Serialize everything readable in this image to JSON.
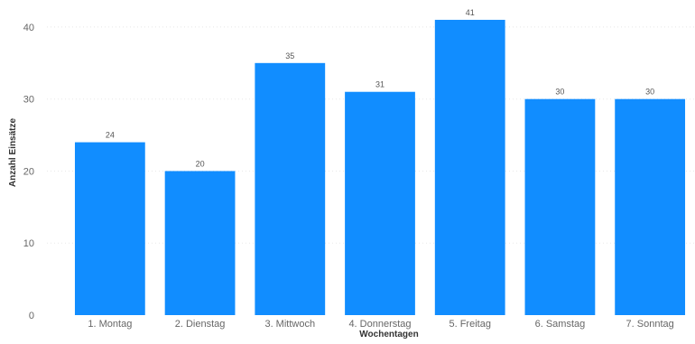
{
  "chart_data": {
    "type": "bar",
    "categories": [
      "1. Montag",
      "2. Dienstag",
      "3. Mittwoch",
      "4. Donnerstag",
      "5. Freitag",
      "6. Samstag",
      "7. Sonntag"
    ],
    "values": [
      24,
      20,
      35,
      31,
      41,
      30,
      30
    ],
    "data_labels": [
      "24",
      "20",
      "35",
      "31",
      "41",
      "30",
      "30"
    ],
    "xlabel": "Wochentagen",
    "ylabel": "Anzahl Einsätze",
    "ylim": [
      0,
      43
    ],
    "yticks": [
      0,
      10,
      20,
      30,
      40
    ],
    "ytick_labels": [
      "0",
      "10",
      "20",
      "30",
      "40"
    ],
    "grid": true,
    "bar_color": "#118DFF"
  }
}
